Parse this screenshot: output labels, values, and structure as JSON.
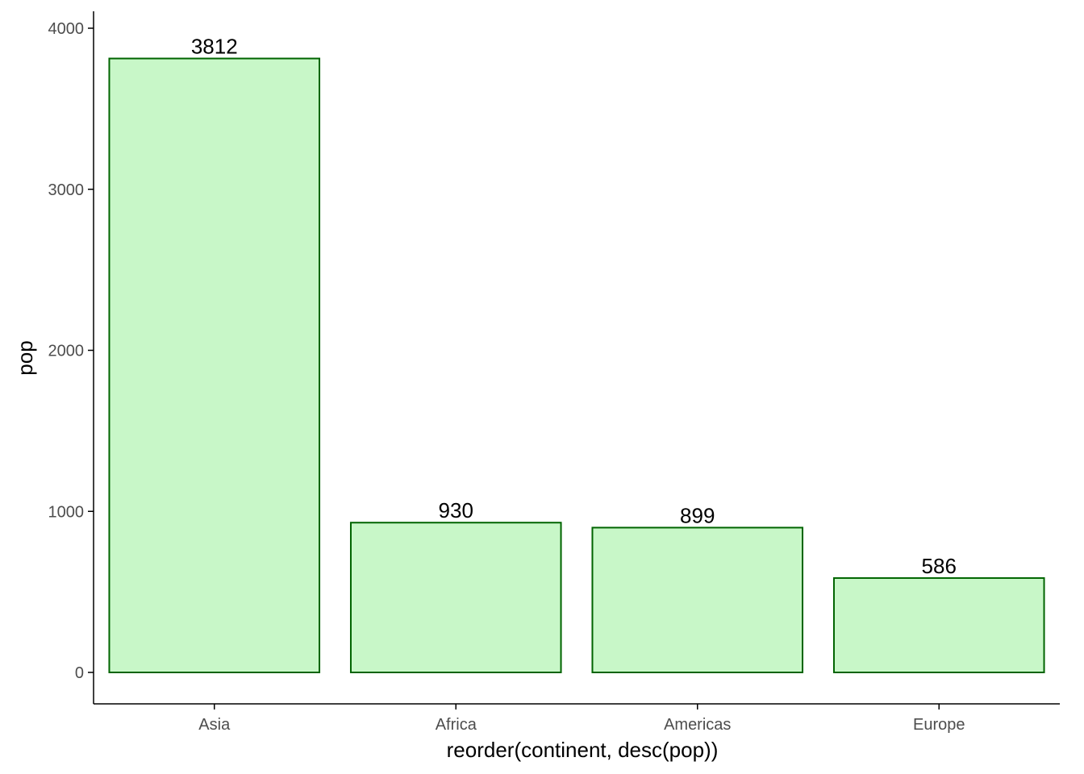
{
  "chart_data": {
    "type": "bar",
    "categories": [
      "Asia",
      "Africa",
      "Americas",
      "Europe"
    ],
    "values": [
      3812,
      930,
      899,
      586
    ],
    "data_labels": [
      "3812",
      "930",
      "899",
      "586"
    ],
    "xlabel": "reorder(continent, desc(pop))",
    "ylabel": "pop",
    "ylim": [
      -190,
      4100
    ],
    "y_ticks": [
      0,
      1000,
      2000,
      3000,
      4000
    ],
    "y_tick_labels": [
      "0",
      "1000",
      "2000",
      "3000",
      "4000"
    ],
    "grid": false,
    "legend": "none",
    "colors": {
      "bar_fill": "#c8f7c8",
      "bar_stroke": "#006400",
      "axis": "#000000",
      "tick_text": "#4d4d4d"
    }
  }
}
